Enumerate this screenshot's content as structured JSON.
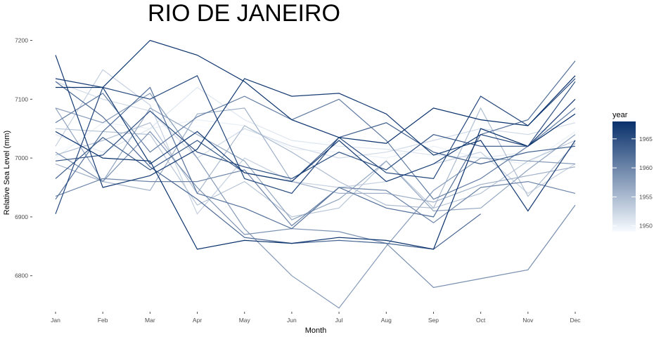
{
  "chart_data": {
    "type": "line",
    "title": "RIO DE JANEIRO",
    "xlabel": "Month",
    "ylabel": "Relative Sea Level (mm)",
    "categories": [
      "Jan",
      "Feb",
      "Mar",
      "Apr",
      "May",
      "Jun",
      "Jul",
      "Aug",
      "Sep",
      "Oct",
      "Nov",
      "Dec"
    ],
    "ylim": [
      6740,
      7210
    ],
    "yticks": [
      6800,
      6900,
      7000,
      7100,
      7200
    ],
    "grid": false,
    "legend": {
      "title": "year",
      "placement": "right",
      "type": "colorbar",
      "ticks": [
        1950,
        1955,
        1960,
        1965
      ],
      "range": [
        1949,
        1968
      ],
      "color_low": "#f7fbff",
      "color_high": "#08306b"
    },
    "series": [
      {
        "year": 1949,
        "values": [
          7012,
          7040,
          7030,
          7055,
          7040,
          7020,
          7030,
          7020,
          7010,
          7005,
          7000,
          7005
        ]
      },
      {
        "year": 1950,
        "values": [
          7000,
          7060,
          7050,
          7065,
          7055,
          7015,
          7010,
          7000,
          7020,
          7000,
          6990,
          7045
        ]
      },
      {
        "year": 1951,
        "values": [
          7040,
          7010,
          7050,
          7120,
          7065,
          7030,
          7020,
          7015,
          7005,
          7000,
          7010,
          7020
        ]
      },
      {
        "year": 1952,
        "values": [
          7130,
          7100,
          7080,
          7000,
          7050,
          7020,
          7000,
          7010,
          7030,
          7050,
          7040,
          7060
        ]
      },
      {
        "year": 1953,
        "values": [
          7020,
          7150,
          7090,
          6905,
          7000,
          6960,
          6950,
          6960,
          6990,
          7010,
          6940,
          6990
        ]
      },
      {
        "year": 1954,
        "values": [
          7050,
          7045,
          7040,
          6920,
          6960,
          6900,
          6915,
          6995,
          6915,
          6940,
          6995,
          7030
        ]
      },
      {
        "year": 1955,
        "values": [
          7005,
          7030,
          7060,
          6940,
          7055,
          7010,
          6960,
          6920,
          6915,
          7085,
          6935,
          7025
        ]
      },
      {
        "year": 1956,
        "values": [
          6990,
          6960,
          6945,
          7075,
          7085,
          6960,
          6940,
          6940,
          6925,
          6955,
          6970,
          6985
        ]
      },
      {
        "year": 1957,
        "values": [
          7085,
          6960,
          7085,
          7040,
          6995,
          6895,
          6930,
          6995,
          6910,
          6915,
          6980,
          7040
        ]
      },
      {
        "year": 1958,
        "values": [
          7085,
          7060,
          7110,
          7000,
          6880,
          6800,
          6745,
          6850,
          6945,
          7000,
          6995,
          6990
        ]
      },
      {
        "year": 1959,
        "values": [
          7010,
          6960,
          7045,
          6950,
          6870,
          6880,
          6875,
          6855,
          6780,
          6795,
          6810,
          6920
        ]
      },
      {
        "year": 1960,
        "values": [
          6935,
          6965,
          6960,
          6960,
          6980,
          6885,
          6950,
          6945,
          6890,
          6950,
          6960,
          6940
        ]
      },
      {
        "year": 1961,
        "values": [
          7060,
          7110,
          7010,
          7070,
          7105,
          7065,
          7100,
          7030,
          6930,
          6965,
          7020,
          7085
        ]
      },
      {
        "year": 1962,
        "values": [
          6930,
          7045,
          7120,
          6940,
          6915,
          6880,
          6950,
          6915,
          6900,
          7040,
          7065,
          7165
        ]
      },
      {
        "year": 1963,
        "values": [
          7130,
          7070,
          6985,
          6930,
          6865,
          6855,
          6860,
          6855,
          6845,
          6905,
          null,
          null
        ]
      },
      {
        "year": 1964,
        "values": [
          6965,
          7035,
          6980,
          7030,
          6975,
          6960,
          7035,
          7060,
          7010,
          6990,
          7010,
          7020
        ]
      },
      {
        "year": 1965,
        "values": [
          6995,
          7005,
          7080,
          7010,
          6985,
          6965,
          7010,
          6980,
          7040,
          7020,
          7020,
          7130
        ]
      },
      {
        "year": 1966,
        "values": [
          6905,
          7120,
          7100,
          7140,
          6965,
          6940,
          7035,
          6975,
          6965,
          7105,
          7055,
          7135
        ]
      },
      {
        "year": 1967,
        "values": [
          7175,
          6950,
          6970,
          7015,
          7135,
          7105,
          7110,
          7075,
          7005,
          7030,
          6910,
          7030
        ]
      },
      {
        "year": 1968,
        "values": [
          7120,
          7120,
          7200,
          7175,
          7130,
          7065,
          7035,
          7025,
          7085,
          7065,
          7055,
          7140
        ]
      },
      {
        "year": 1968,
        "values": [
          7045,
          7000,
          6995,
          6845,
          6860,
          6855,
          6865,
          6860,
          6845,
          7050,
          7020,
          7075
        ]
      },
      {
        "year": 1967,
        "values": [
          7135,
          7120,
          6990,
          7045,
          6975,
          6960,
          7030,
          6960,
          6990,
          7040,
          7020,
          7100
        ]
      }
    ]
  }
}
